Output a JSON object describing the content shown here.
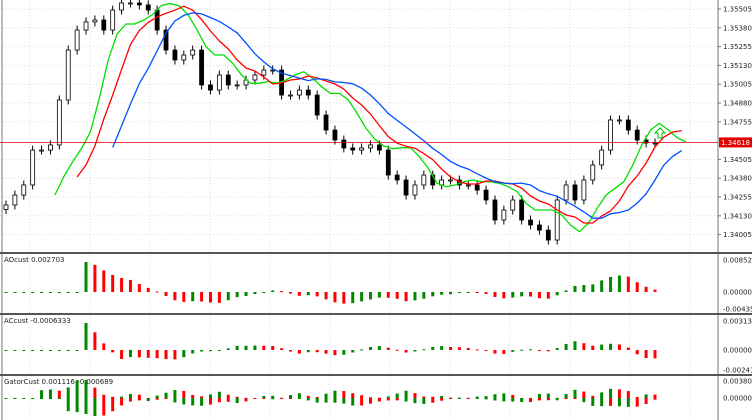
{
  "chart_data": {
    "type": "candlestick",
    "main": {
      "y_ticks": [
        "1.35505",
        "1.35380",
        "1.35255",
        "1.35130",
        "1.35005",
        "1.34880",
        "1.34755",
        "1.34505",
        "1.34380",
        "1.34255",
        "1.34130",
        "1.34005"
      ],
      "current_price": "1.34618",
      "ylim": [
        1.3393,
        1.3556
      ],
      "closes": [
        1.34202,
        1.34268,
        1.34335,
        1.34567,
        1.34567,
        1.34601,
        1.349,
        1.35232,
        1.35365,
        1.35419,
        1.35432,
        1.35365,
        1.35498,
        1.35545,
        1.35545,
        1.35532,
        1.35498,
        1.35365,
        1.35232,
        1.35166,
        1.35199,
        1.35232,
        1.35,
        1.34966,
        1.35066,
        1.35,
        1.35,
        1.35033,
        1.35066,
        1.35099,
        1.35099,
        1.34933,
        1.34933,
        1.34966,
        1.34933,
        1.348,
        1.347,
        1.34634,
        1.34581,
        1.34567,
        1.34581,
        1.34601,
        1.34567,
        1.34401,
        1.34368,
        1.34268,
        1.34335,
        1.34401,
        1.34335,
        1.34368,
        1.34368,
        1.34335,
        1.34335,
        1.34301,
        1.34235,
        1.34102,
        1.34168,
        1.34235,
        1.34102,
        1.34069,
        1.34035,
        1.33969,
        1.34235,
        1.34335,
        1.34235,
        1.34368,
        1.34468,
        1.34567,
        1.34767,
        1.34767,
        1.347,
        1.34634,
        1.34614,
        1.34614
      ],
      "colors": {
        "lips": "#00e000",
        "teeth": "#ff0000",
        "jaw": "#0050ff",
        "price_line": "#e00000",
        "up_arrow": "#00c000"
      }
    },
    "panels": [
      {
        "title": "AOcust 0.002703",
        "y_ticks": [
          "0.008521",
          "0.000000",
          "-0.004350"
        ]
      },
      {
        "title": "ACcust -0.0006333",
        "y_ticks": [
          "0.0031382",
          "0.0000000",
          "-0.0024114"
        ]
      },
      {
        "title": "GatorCust 0.001116 -0.000689",
        "y_ticks": [
          "0.003808",
          "0.000000"
        ]
      }
    ],
    "bar_colors": {
      "up": "#008800",
      "down": "#ff0000"
    }
  }
}
